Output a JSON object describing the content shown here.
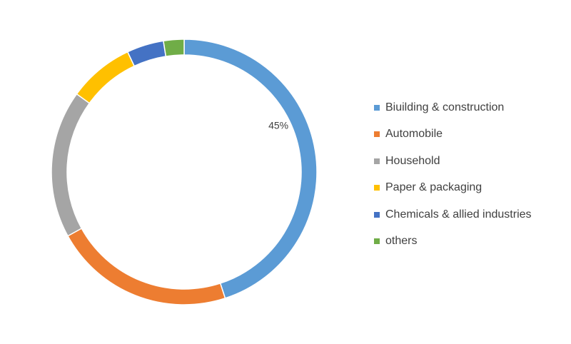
{
  "chart_data": {
    "type": "pie",
    "variant": "donut",
    "categories": [
      "Biuilding & construction",
      "Automobile",
      "Household",
      "Paper & packaging",
      "Chemicals & allied industries",
      "others"
    ],
    "values": [
      45,
      22,
      18,
      8,
      4.5,
      2.5
    ],
    "colors": [
      "#5b9bd5",
      "#ed7d31",
      "#a5a5a5",
      "#ffc000",
      "#4472c4",
      "#70ad47"
    ],
    "data_labels": [
      "45%",
      "",
      "",
      "",
      "",
      ""
    ],
    "legend_position": "right"
  }
}
